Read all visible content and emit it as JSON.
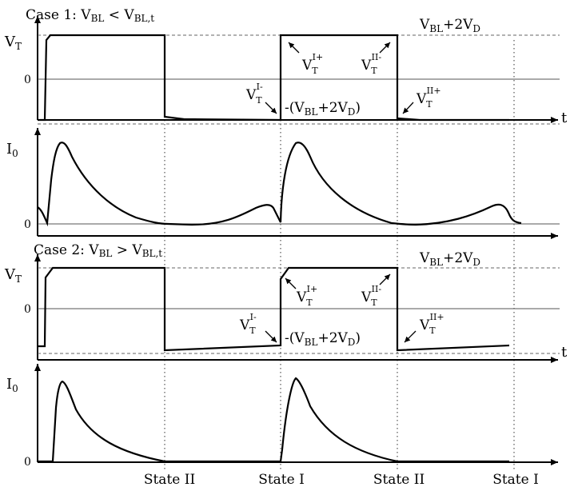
{
  "case1": {
    "prefix": "Case 1: V",
    "bl": "BL",
    "op": " < V",
    "blt": "BL,t"
  },
  "case2": {
    "prefix": "Case 2: V",
    "bl": "BL",
    "op": " > V",
    "blt": "BL,t"
  },
  "axis": {
    "vt_main": "V",
    "vt_sub": "T",
    "i0_main": "I",
    "i0_sub": "0",
    "zero": "0",
    "t": "t"
  },
  "levels": {
    "upper_v": "V",
    "upper_bl": "BL",
    "upper_plus": "+2V",
    "upper_d": "D",
    "lower_open": "-(V",
    "lower_bl": "BL",
    "lower_plus": "+2V",
    "lower_d": "D",
    "lower_close": ")"
  },
  "transitions": {
    "v": "V",
    "t": "T",
    "i_minus": "I-",
    "i_plus": "I+",
    "ii_minus": "II-",
    "ii_plus": "II+"
  },
  "states": [
    "State II",
    "State I",
    "State II",
    "State I"
  ]
}
